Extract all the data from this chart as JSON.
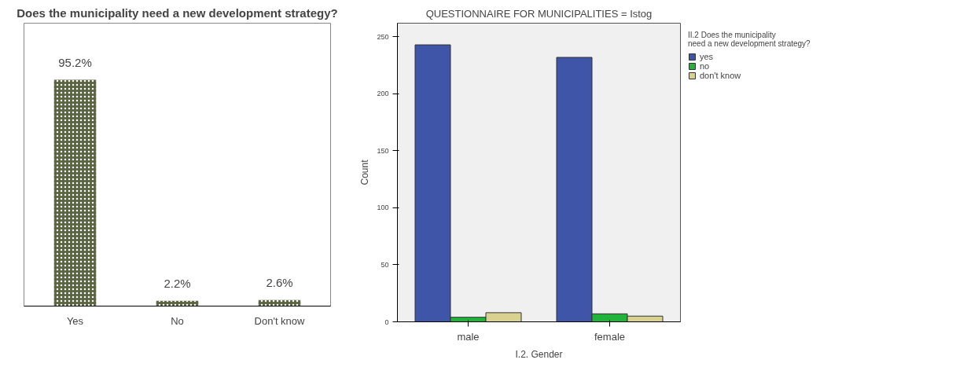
{
  "chart_data": [
    {
      "type": "bar",
      "title": "Does the municipality need a new development strategy?",
      "categories": [
        "Yes",
        "No",
        "Don't know"
      ],
      "values": [
        95.2,
        2.2,
        2.6
      ],
      "value_labels": [
        "95.2%",
        "2.2%",
        "2.6%"
      ],
      "color": "#5a6440",
      "tick_labels": "x",
      "grid": false,
      "legend": false
    },
    {
      "type": "bar",
      "title": "QUESTIONNAIRE FOR MUNICIPALITIES = Istog",
      "xlabel": "I.2. Gender",
      "ylabel": "Count",
      "legend_title": "II.2 Does the municipality need a new development strategy?",
      "categories": [
        "male",
        "female"
      ],
      "series": [
        {
          "name": "yes",
          "color": "#3f55a8",
          "values": [
            243,
            232
          ]
        },
        {
          "name": "no",
          "color": "#22b33a",
          "values": [
            4,
            7
          ]
        },
        {
          "name": "don't know",
          "color": "#d8d190",
          "values": [
            8,
            5
          ]
        }
      ],
      "ylim": [
        0,
        262
      ],
      "yticks": [
        0,
        50,
        100,
        150,
        200,
        250
      ],
      "grid": false,
      "legend": "right"
    }
  ]
}
